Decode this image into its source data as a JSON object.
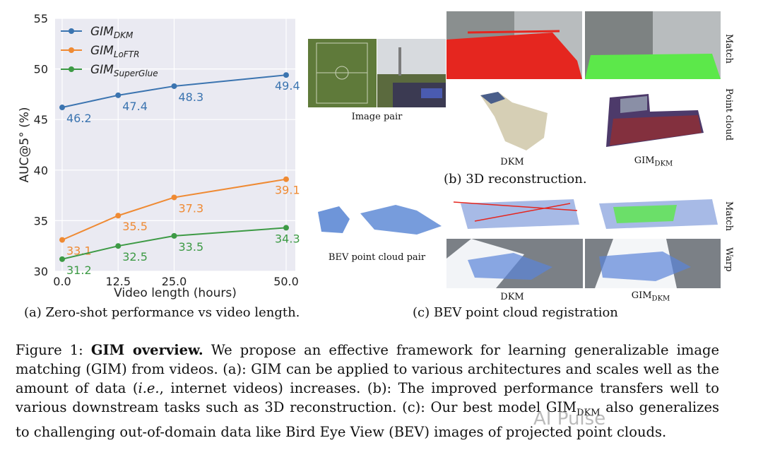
{
  "chart_data": {
    "type": "line",
    "x": [
      0.0,
      12.5,
      25.0,
      50.0
    ],
    "x_ticks": [
      "0.0",
      "12.5",
      "25.0",
      "50.0"
    ],
    "y_ticks": [
      "30",
      "35",
      "40",
      "45",
      "50",
      "55"
    ],
    "xlabel": "Video length (hours)",
    "ylabel": "AUC@5° (%)",
    "ylim": [
      30,
      55
    ],
    "legend_position": "top-left",
    "series": [
      {
        "name_main": "GIM",
        "name_sub": "DKM",
        "color": "#3b74b0",
        "values": [
          46.2,
          47.4,
          48.3,
          49.4
        ],
        "labels": [
          "46.2",
          "47.4",
          "48.3",
          "49.4"
        ]
      },
      {
        "name_main": "GIM",
        "name_sub": "LoFTR",
        "color": "#ef8a33",
        "values": [
          33.1,
          35.5,
          37.3,
          39.1
        ],
        "labels": [
          "33.1",
          "35.5",
          "37.3",
          "39.1"
        ]
      },
      {
        "name_main": "GIM",
        "name_sub": "SuperGlue",
        "color": "#3d9a45",
        "values": [
          31.2,
          32.5,
          33.5,
          34.3
        ],
        "labels": [
          "31.2",
          "32.5",
          "33.5",
          "34.3"
        ]
      }
    ]
  },
  "panel_a": {
    "caption": "(a) Zero-shot performance vs video length."
  },
  "panel_b": {
    "caption": "(b) 3D reconstruction.",
    "image_pair_label": "Image pair",
    "dkm_label": "DKM",
    "gim_main": "GIM",
    "gim_sub": "DKM",
    "match_label": "Match",
    "point_cloud_label": "Point cloud"
  },
  "panel_c": {
    "caption": "(c) BEV point cloud registration",
    "bev_pair_label": "BEV point cloud pair",
    "dkm_label": "DKM",
    "gim_main": "GIM",
    "gim_sub": "DKM",
    "match_label": "Match",
    "warp_label": "Warp"
  },
  "figure_caption": {
    "prefix": "Figure 1: ",
    "title": "GIM overview.",
    "t1": " We propose an effective framework for learning generalizable image matching (GIM) from videos. (a): GIM can be applied to various architectures and scales well as the amount of data (",
    "ie": "i.e.",
    "t2": ", internet videos) increases. (b): The improved performance transfers well to various downstream tasks such as 3D reconstruction. (c): Our best model GIM",
    "sub": "DKM",
    "t3": " also generalizes to challenging out-of-domain data like Bird Eye View (BEV) images of projected point clouds."
  },
  "watermark": "AI Pulse",
  "colors": {
    "plot_bg": "#eaeaf2",
    "grid": "#ffffff"
  }
}
